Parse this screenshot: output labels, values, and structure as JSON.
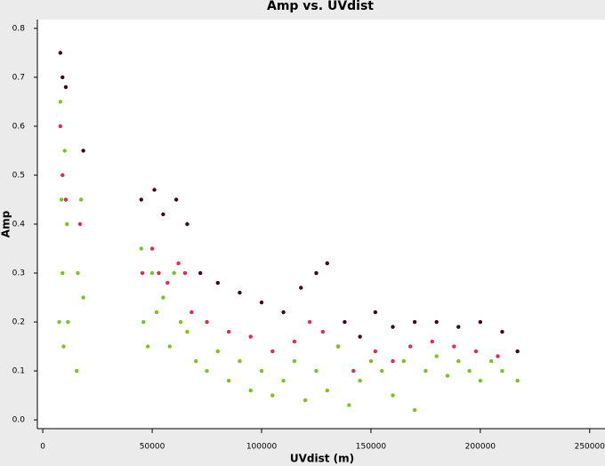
{
  "chart_data": {
    "type": "scatter",
    "title": "Amp vs. UVdist",
    "x_label": "UVdist (m)",
    "y_label": "Amp",
    "xlim": [
      -2500,
      257000
    ],
    "xticks": [
      0,
      50000,
      100000,
      150000,
      200000,
      250000
    ],
    "ylim": [
      -0.018,
      0.818
    ],
    "yticks": [
      {
        "value": 0,
        "label": "0.0"
      },
      0.1,
      0.2,
      0.3,
      0.4,
      0.5,
      0.6,
      0.7,
      0.8
    ],
    "series": [
      {
        "color": "#3a0a1e",
        "x": [
          8000,
          9000,
          10500,
          18500,
          45000,
          51000,
          55000,
          61000,
          66000,
          72000,
          80000,
          90000,
          100000,
          110000,
          118000,
          125000,
          130000,
          138000,
          145000,
          152000,
          160000,
          170000,
          180000,
          190000,
          200000,
          210000,
          217000
        ],
        "values": [
          0.75,
          0.7,
          0.68,
          0.55,
          0.45,
          0.47,
          0.42,
          0.45,
          0.4,
          0.3,
          0.28,
          0.26,
          0.24,
          0.22,
          0.27,
          0.3,
          0.32,
          0.2,
          0.17,
          0.22,
          0.19,
          0.2,
          0.2,
          0.19,
          0.2,
          0.18,
          0.14
        ]
      },
      {
        "color": "#e8284f",
        "x": [
          8000,
          9000,
          10500,
          17000,
          45500,
          50000,
          53000,
          57000,
          62000,
          65000,
          68000,
          75000,
          85000,
          95000,
          105000,
          115000,
          122000,
          128000,
          135000,
          142000,
          152000,
          160000,
          168000,
          178000,
          188000,
          198000,
          208000
        ],
        "values": [
          0.6,
          0.5,
          0.45,
          0.4,
          0.3,
          0.35,
          0.3,
          0.28,
          0.32,
          0.3,
          0.22,
          0.2,
          0.18,
          0.17,
          0.14,
          0.16,
          0.2,
          0.18,
          0.15,
          0.1,
          0.14,
          0.12,
          0.15,
          0.16,
          0.15,
          0.14,
          0.13
        ]
      },
      {
        "color": "#7cc41a",
        "x": [
          7500,
          8000,
          8500,
          9000,
          9500,
          10000,
          11000,
          11500,
          15500,
          16000,
          17500,
          18500,
          45000,
          46000,
          48000,
          50000,
          52000,
          55000,
          58000,
          60000,
          63000,
          66000,
          70000,
          75000,
          80000,
          85000,
          90000,
          95000,
          100000,
          105000,
          110000,
          115000,
          120000,
          125000,
          130000,
          135000,
          140000,
          145000,
          150000,
          155000,
          160000,
          165000,
          170000,
          175000,
          180000,
          185000,
          190000,
          195000,
          200000,
          205000,
          210000,
          217000
        ],
        "values": [
          0.2,
          0.65,
          0.45,
          0.3,
          0.15,
          0.55,
          0.4,
          0.2,
          0.1,
          0.3,
          0.45,
          0.25,
          0.35,
          0.2,
          0.15,
          0.3,
          0.22,
          0.25,
          0.15,
          0.3,
          0.2,
          0.18,
          0.12,
          0.1,
          0.14,
          0.08,
          0.12,
          0.06,
          0.1,
          0.05,
          0.08,
          0.12,
          0.04,
          0.1,
          0.06,
          0.15,
          0.03,
          0.08,
          0.12,
          0.1,
          0.05,
          0.12,
          0.02,
          0.1,
          0.13,
          0.09,
          0.12,
          0.1,
          0.08,
          0.12,
          0.1,
          0.08
        ]
      }
    ]
  }
}
